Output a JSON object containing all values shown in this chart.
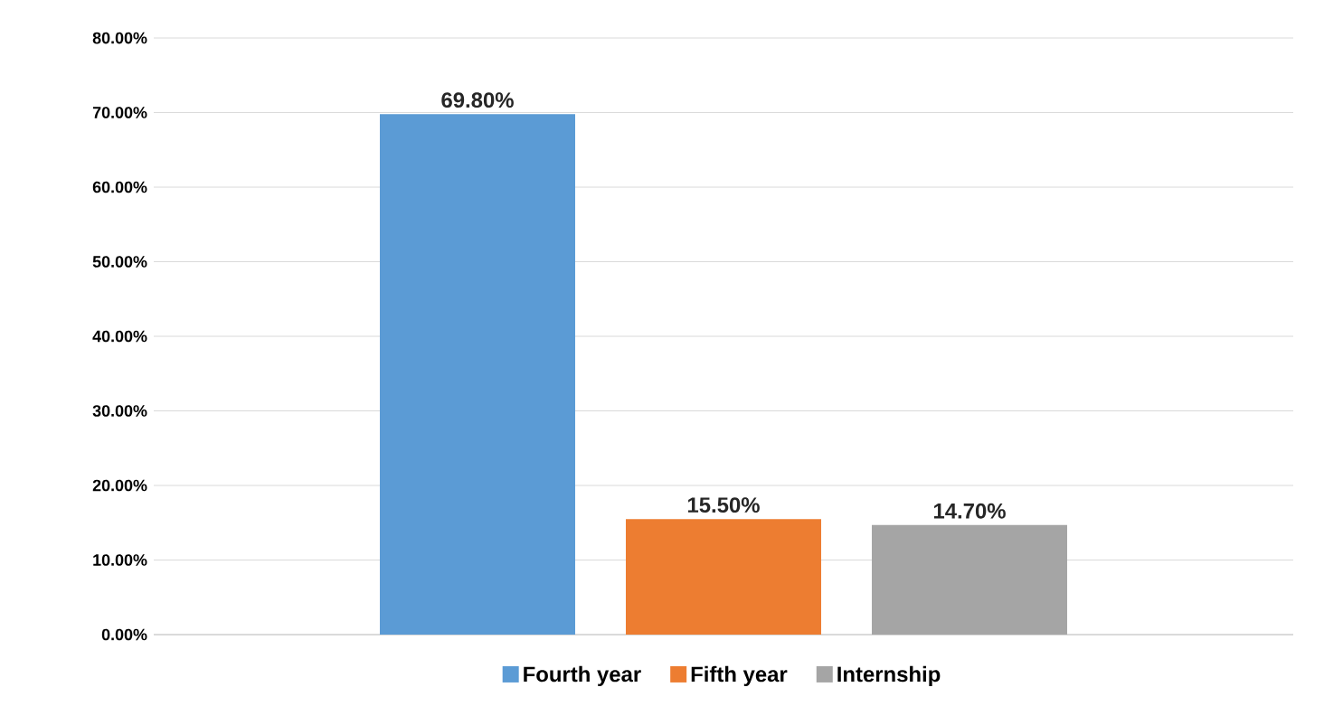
{
  "chart_data": {
    "type": "bar",
    "categories": [
      null
    ],
    "series": [
      {
        "name": "Fourth year",
        "color": "#5b9bd5",
        "values": [
          69.8
        ],
        "value_labels": [
          "69.80%"
        ]
      },
      {
        "name": "Fifth year",
        "color": "#ed7d31",
        "values": [
          15.5
        ],
        "value_labels": [
          "15.50%"
        ]
      },
      {
        "name": "Internship",
        "color": "#a5a5a5",
        "values": [
          14.7
        ],
        "value_labels": [
          "14.70%"
        ]
      }
    ],
    "ylim": [
      0,
      80
    ],
    "yticks": [
      {
        "value": 0,
        "label": "0.00%"
      },
      {
        "value": 10,
        "label": "10.00%"
      },
      {
        "value": 20,
        "label": "20.00%"
      },
      {
        "value": 30,
        "label": "30.00%"
      },
      {
        "value": 40,
        "label": "40.00%"
      },
      {
        "value": 50,
        "label": "50.00%"
      },
      {
        "value": 60,
        "label": "60.00%"
      },
      {
        "value": 70,
        "label": "70.00%"
      },
      {
        "value": 80,
        "label": "80.00%"
      }
    ],
    "grid": "y",
    "legend": "bottom"
  }
}
